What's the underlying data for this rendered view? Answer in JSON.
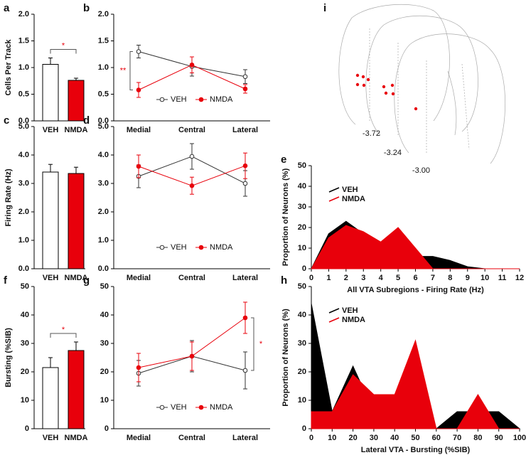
{
  "chart_data": [
    {
      "type": "bar",
      "label": "a",
      "ylabel": "Cells Per Track",
      "categories": [
        "VEH",
        "NMDA"
      ],
      "values": [
        1.06,
        0.76
      ],
      "errors": [
        0.12,
        0.04
      ],
      "colors": [
        "#ffffff",
        "#e8000b"
      ],
      "ylim": [
        0,
        2
      ],
      "yticks": [
        {
          "value": 0,
          "label": "0.0"
        },
        {
          "value": 0.5,
          "label": "0.5"
        },
        {
          "value": 1,
          "label": "1.0"
        },
        {
          "value": 1.5,
          "label": "1.5"
        },
        {
          "value": 2,
          "label": "2.0"
        }
      ],
      "annotations": [
        "*"
      ]
    },
    {
      "type": "line",
      "label": "b",
      "categories": [
        "Medial",
        "Central",
        "Lateral"
      ],
      "series": [
        {
          "name": "VEH",
          "color": "#333333",
          "values": [
            1.3,
            1.02,
            0.83
          ],
          "errors": [
            0.12,
            0.18,
            0.13
          ]
        },
        {
          "name": "NMDA",
          "color": "#e8000b",
          "values": [
            0.58,
            1.05,
            0.6
          ],
          "errors": [
            0.14,
            0.15,
            0.08
          ]
        }
      ],
      "ylim": [
        0,
        2
      ],
      "yticks": [
        {
          "value": 0,
          "label": "0.0"
        },
        {
          "value": 0.5,
          "label": "0.5"
        },
        {
          "value": 1,
          "label": "1.0"
        },
        {
          "value": 1.5,
          "label": "1.5"
        },
        {
          "value": 2,
          "label": "2.0"
        }
      ],
      "annotations": [
        "**"
      ]
    },
    {
      "type": "bar",
      "label": "c",
      "ylabel": "Firing Rate (Hz)",
      "categories": [
        "VEH",
        "NMDA"
      ],
      "values": [
        3.4,
        3.35
      ],
      "errors": [
        0.27,
        0.22
      ],
      "colors": [
        "#ffffff",
        "#e8000b"
      ],
      "ylim": [
        0,
        5
      ],
      "yticks": [
        {
          "value": 0,
          "label": "0.0"
        },
        {
          "value": 1,
          "label": "1.0"
        },
        {
          "value": 2,
          "label": "2.0"
        },
        {
          "value": 3,
          "label": "3.0"
        },
        {
          "value": 4,
          "label": "4.0"
        },
        {
          "value": 5,
          "label": "5.0"
        }
      ]
    },
    {
      "type": "line",
      "label": "d",
      "categories": [
        "Medial",
        "Central",
        "Lateral"
      ],
      "series": [
        {
          "name": "VEH",
          "color": "#333333",
          "values": [
            3.25,
            3.95,
            3.0
          ],
          "errors": [
            0.4,
            0.45,
            0.45
          ]
        },
        {
          "name": "NMDA",
          "color": "#e8000b",
          "values": [
            3.6,
            2.92,
            3.62
          ],
          "errors": [
            0.4,
            0.3,
            0.45
          ]
        }
      ],
      "ylim": [
        0,
        5
      ],
      "yticks": [
        {
          "value": 0,
          "label": "0.0"
        },
        {
          "value": 1,
          "label": "1.0"
        },
        {
          "value": 2,
          "label": "2.0"
        },
        {
          "value": 3,
          "label": "3.0"
        },
        {
          "value": 4,
          "label": "4.0"
        },
        {
          "value": 5,
          "label": "5.0"
        }
      ]
    },
    {
      "type": "area",
      "label": "e",
      "ylabel": "Proportion of Neurons (%)",
      "xlabel": "All VTA Subregions - Firing Rate (Hz)",
      "x": [
        0,
        1,
        2,
        3,
        4,
        5,
        6,
        7,
        8,
        9,
        10,
        11,
        12
      ],
      "series": [
        {
          "name": "VEH",
          "color": "#000000",
          "values": [
            0,
            17,
            23,
            17,
            11,
            8,
            6,
            6,
            4,
            1,
            0,
            0,
            0
          ]
        },
        {
          "name": "NMDA",
          "color": "#e8000b",
          "values": [
            0,
            15,
            21,
            18,
            13,
            20,
            10,
            0,
            0,
            0,
            0,
            0,
            0
          ]
        }
      ],
      "xlim": [
        0,
        12
      ],
      "xticks": [
        0,
        1,
        2,
        3,
        4,
        5,
        6,
        7,
        8,
        9,
        10,
        11,
        12
      ],
      "ylim": [
        0,
        50
      ],
      "yticks": [
        0,
        10,
        20,
        30,
        40,
        50
      ]
    },
    {
      "type": "bar",
      "label": "f",
      "ylabel": "Bursting (%SIB)",
      "categories": [
        "VEH",
        "NMDA"
      ],
      "values": [
        21.5,
        27.5
      ],
      "errors": [
        3.5,
        3
      ],
      "colors": [
        "#ffffff",
        "#e8000b"
      ],
      "ylim": [
        0,
        50
      ],
      "yticks": [
        0,
        10,
        20,
        30,
        40,
        50
      ],
      "annotations": [
        "*"
      ]
    },
    {
      "type": "line",
      "label": "g",
      "categories": [
        "Medial",
        "Central",
        "Lateral"
      ],
      "series": [
        {
          "name": "VEH",
          "color": "#333333",
          "values": [
            19.5,
            25.5,
            20.5
          ],
          "errors": [
            4.5,
            5.5,
            6.5
          ]
        },
        {
          "name": "NMDA",
          "color": "#e8000b",
          "values": [
            21.5,
            25.5,
            39
          ],
          "errors": [
            5,
            5,
            5.5
          ]
        }
      ],
      "ylim": [
        0,
        50
      ],
      "yticks": [
        0,
        10,
        20,
        30,
        40,
        50
      ],
      "annotations": [
        "*"
      ]
    },
    {
      "type": "area",
      "label": "h",
      "ylabel": "Proportion of Neurons (%)",
      "xlabel": "Lateral VTA - Bursting (%SIB)",
      "x": [
        0,
        10,
        20,
        30,
        40,
        50,
        60,
        70,
        80,
        90,
        100
      ],
      "series": [
        {
          "name": "VEH",
          "color": "#000000",
          "values": [
            44,
            6,
            22,
            6,
            0,
            0,
            0,
            6,
            6,
            6,
            0
          ]
        },
        {
          "name": "NMDA",
          "color": "#e8000b",
          "values": [
            6,
            6,
            19,
            12,
            12,
            31,
            0,
            0,
            12,
            0,
            0
          ]
        }
      ],
      "xlim": [
        0,
        100
      ],
      "xticks": [
        0,
        10,
        20,
        30,
        40,
        50,
        60,
        70,
        80,
        90,
        100
      ],
      "ylim": [
        0,
        50
      ],
      "yticks": [
        0,
        10,
        20,
        30,
        40,
        50
      ]
    }
  ],
  "diagram": {
    "label": "i",
    "levels": [
      "-3.72",
      "-3.24",
      "-3.00"
    ]
  }
}
